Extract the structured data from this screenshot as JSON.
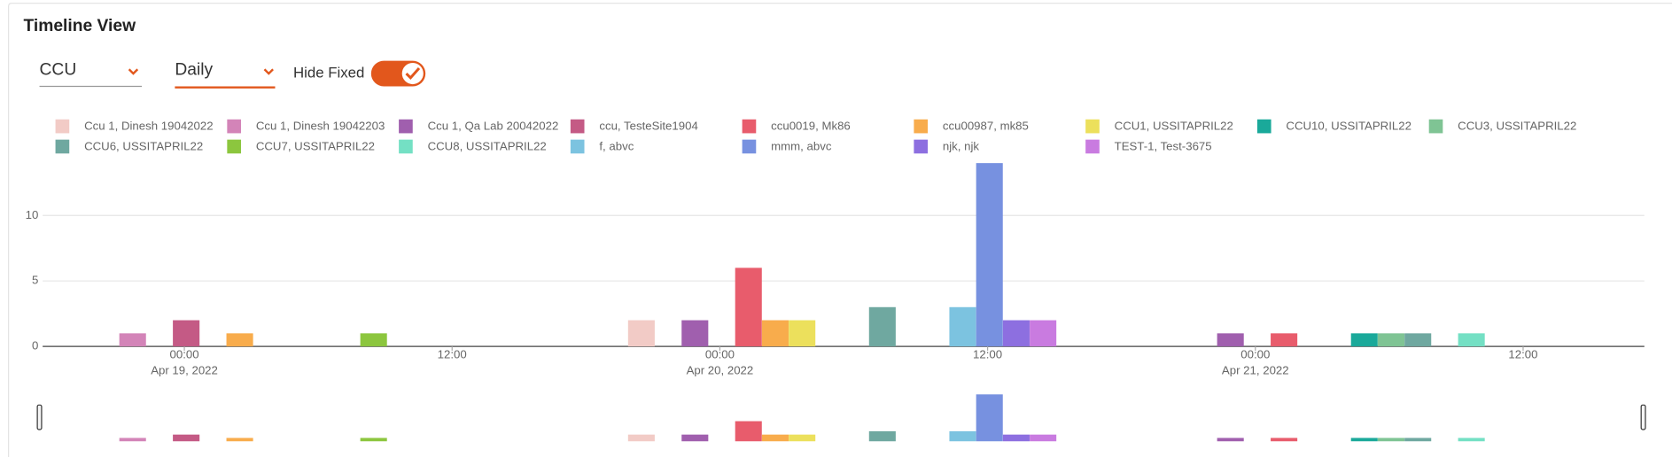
{
  "header": {
    "title": "Timeline View"
  },
  "controls": {
    "group_by": "CCU",
    "period": "Daily",
    "toggle_label": "Hide Fixed",
    "toggle_on": true
  },
  "chart_data": {
    "type": "bar",
    "series": [
      {
        "name": "Ccu 1, Dinesh 19042022",
        "color": "#f2cbc6",
        "x": [
          "2022-04-19 20:29"
        ],
        "values": [
          2
        ]
      },
      {
        "name": "Ccu 1, Dinesh 19042203",
        "color": "#d384b8",
        "x": [
          "2022-04-18 21:41"
        ],
        "values": [
          1
        ]
      },
      {
        "name": "Ccu 1, Qa Lab 20042022",
        "color": "#a05fae",
        "x": [
          "2022-04-19 22:53",
          "2022-04-20 22:53"
        ],
        "values": [
          2,
          1
        ]
      },
      {
        "name": "ccu, TesteSite1904",
        "color": "#c45a85",
        "x": [
          "2022-04-19 00:05"
        ],
        "values": [
          2
        ]
      },
      {
        "name": "ccu0019, Mk86",
        "color": "#e85c6c",
        "x": [
          "2022-04-20 01:17",
          "2022-04-21 01:17"
        ],
        "values": [
          6,
          1
        ]
      },
      {
        "name": "ccu00987, mk85",
        "color": "#f8ac4c",
        "x": [
          "2022-04-19 02:29",
          "2022-04-20 02:29"
        ],
        "values": [
          1,
          2
        ]
      },
      {
        "name": "CCU1, USSITAPRIL22",
        "color": "#ece05c",
        "x": [
          "2022-04-20 03:41"
        ],
        "values": [
          2
        ]
      },
      {
        "name": "CCU10, USSITAPRIL22",
        "color": "#1aa99a",
        "x": [
          "2022-04-21 04:53"
        ],
        "values": [
          1
        ]
      },
      {
        "name": "CCU3, USSITAPRIL22",
        "color": "#7fc494",
        "x": [
          "2022-04-21 06:05"
        ],
        "values": [
          1
        ]
      },
      {
        "name": "CCU6, USSITAPRIL22",
        "color": "#6fa8a0",
        "x": [
          "2022-04-20 07:17",
          "2022-04-21 07:17"
        ],
        "values": [
          3,
          1
        ]
      },
      {
        "name": "CCU7, USSITAPRIL22",
        "color": "#8cc63e",
        "x": [
          "2022-04-19 08:29"
        ],
        "values": [
          1
        ]
      },
      {
        "name": "CCU8, USSITAPRIL22",
        "color": "#74e0c4",
        "x": [
          "2022-04-21 09:41"
        ],
        "values": [
          1
        ]
      },
      {
        "name": "f, abvc",
        "color": "#7cc3e0",
        "x": [
          "2022-04-20 10:53"
        ],
        "values": [
          3
        ]
      },
      {
        "name": "mmm, abvc",
        "color": "#7791e0",
        "x": [
          "2022-04-20 12:05"
        ],
        "values": [
          14
        ]
      },
      {
        "name": "njk, njk",
        "color": "#8d6fe0",
        "x": [
          "2022-04-20 13:17"
        ],
        "values": [
          2
        ]
      },
      {
        "name": "TEST-1, Test-3675",
        "color": "#c97be0",
        "x": [
          "2022-04-20 14:29"
        ],
        "values": [
          2
        ]
      }
    ],
    "xlim": [
      "2022-04-18 17:39",
      "2022-04-21 17:26"
    ],
    "xticks": [
      {
        "value": "2022-04-19 00:00",
        "label": "00:00",
        "date": "Apr 19, 2022"
      },
      {
        "value": "2022-04-19 12:00",
        "label": "12:00"
      },
      {
        "value": "2022-04-20 00:00",
        "label": "00:00",
        "date": "Apr 20, 2022"
      },
      {
        "value": "2022-04-20 12:00",
        "label": "12:00"
      },
      {
        "value": "2022-04-21 00:00",
        "label": "00:00",
        "date": "Apr 21, 2022"
      },
      {
        "value": "2022-04-21 12:00",
        "label": "12:00"
      }
    ],
    "ylim": [
      0,
      14
    ],
    "yticks": [
      0,
      5,
      10
    ],
    "grid": true,
    "legend": "top",
    "navigator": true
  }
}
